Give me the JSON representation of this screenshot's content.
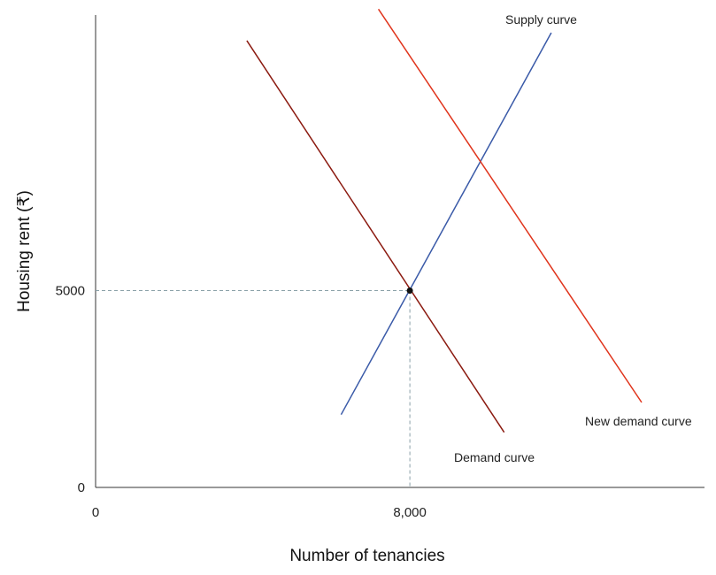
{
  "chart_data": {
    "type": "line",
    "title": "",
    "xlabel": "Number of tenancies",
    "ylabel": "Housing rent (₹)",
    "xlim": [
      0,
      15500
    ],
    "ylim": [
      0,
      12000
    ],
    "x_ticks": [
      {
        "value": 0,
        "label": "0"
      },
      {
        "value": 8000,
        "label": "8,000"
      }
    ],
    "y_ticks": [
      {
        "value": 0,
        "label": "0"
      },
      {
        "value": 5000,
        "label": "5000"
      }
    ],
    "series": [
      {
        "name": "Supply curve",
        "color": "#3a5aa8",
        "points": [
          [
            6250,
            1850
          ],
          [
            11600,
            11550
          ]
        ]
      },
      {
        "name": "Demand curve",
        "color": "#8b1a10",
        "points": [
          [
            3850,
            11350
          ],
          [
            10400,
            1400
          ]
        ]
      },
      {
        "name": "New demand curve",
        "color": "#e0341c",
        "points": [
          [
            7200,
            12150
          ],
          [
            13900,
            2160
          ]
        ]
      }
    ],
    "equilibrium": {
      "x": 8000,
      "y": 5000
    },
    "grid": false,
    "legend": "none"
  }
}
